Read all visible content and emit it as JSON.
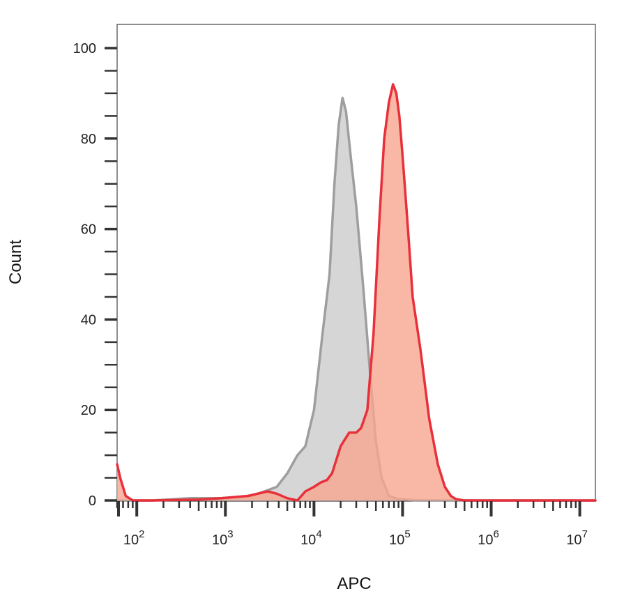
{
  "chart_data": {
    "type": "area",
    "xlabel": "APC",
    "ylabel": "Count",
    "x_scale": "log",
    "xlim": [
      60,
      15000000
    ],
    "ylim": [
      0,
      100
    ],
    "x_ticks": [
      {
        "base": "10",
        "exp": "2"
      },
      {
        "base": "10",
        "exp": "3"
      },
      {
        "base": "10",
        "exp": "4"
      },
      {
        "base": "10",
        "exp": "5"
      },
      {
        "base": "10",
        "exp": "6"
      },
      {
        "base": "10",
        "exp": "7"
      }
    ],
    "y_ticks": [
      "0",
      "20",
      "40",
      "60",
      "80",
      "100"
    ],
    "grid": false,
    "legend": "none",
    "series": [
      {
        "color": "#9e9e9e",
        "fill": "#d4d4d4",
        "x": [
          60,
          80,
          150,
          400,
          900,
          2000,
          3800,
          5000,
          6500,
          8000,
          10000,
          12500,
          15000,
          17000,
          19000,
          21000,
          23000,
          26000,
          30000,
          36000,
          43000,
          50000,
          58000,
          70000,
          90000,
          150000,
          1000000,
          15000000
        ],
        "y": [
          0,
          0,
          0,
          0.5,
          0.5,
          1.0,
          3.0,
          6.0,
          10.0,
          12.0,
          20.0,
          37.0,
          50.0,
          70.0,
          83.0,
          89.0,
          86.0,
          76.0,
          65.0,
          47.0,
          28.0,
          13.0,
          5.0,
          1.0,
          0.3,
          0,
          0,
          0
        ]
      },
      {
        "color": "#e8303a",
        "fill": "#f7a58e",
        "x": [
          60,
          65,
          75,
          90,
          150,
          500,
          900,
          1800,
          3000,
          3800,
          5000,
          6500,
          8000,
          10000,
          12000,
          14000,
          16000,
          20000,
          25000,
          30000,
          34000,
          40000,
          47000,
          55000,
          62000,
          70000,
          78000,
          85000,
          92000,
          100000,
          115000,
          130000,
          160000,
          200000,
          250000,
          300000,
          350000,
          400000,
          500000,
          1000000,
          15000000
        ],
        "y": [
          8.0,
          5.0,
          1.0,
          0,
          0,
          0.2,
          0.5,
          1.0,
          2.0,
          1.5,
          0.5,
          0,
          2.0,
          3.0,
          4.0,
          4.5,
          6.0,
          12.0,
          15.0,
          15.0,
          16.0,
          20.0,
          37.0,
          63.0,
          80.0,
          88.0,
          92.0,
          90.0,
          85.0,
          76.0,
          60.0,
          45.0,
          33.0,
          18.0,
          8.0,
          3.0,
          1.0,
          0.3,
          0,
          0,
          0
        ]
      }
    ]
  }
}
